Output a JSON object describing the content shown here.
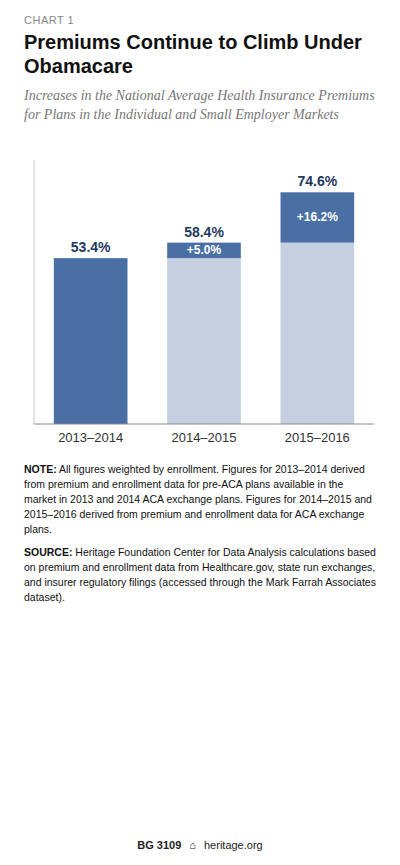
{
  "chart_data": {
    "type": "bar",
    "stacked": true,
    "label": "CHART 1",
    "title": "Premiums Continue to Climb Under Obamacare",
    "subtitle": "Increases in the National Average Health Insurance Premiums for Plans in the Individual and Small Employer Markets",
    "categories": [
      "2013–2014",
      "2014–2015",
      "2015–2016"
    ],
    "series": [
      {
        "values": [
          53.4,
          53.4,
          58.4
        ],
        "colors": [
          "#4a6fa5",
          "#c5cfe0",
          "#c5cfe0"
        ]
      },
      {
        "values": [
          0,
          5.0,
          16.2
        ],
        "color": "#4a6fa5",
        "data_labels": true,
        "value_labels": [
          null,
          "+5.0%",
          "+16.2%"
        ]
      }
    ],
    "totals": [
      53.4,
      58.4,
      74.6
    ],
    "total_labels": [
      "53.4%",
      "58.4%",
      "74.6%"
    ],
    "ylim": [
      0,
      85
    ],
    "yticks": [],
    "tick_labels": "x",
    "grid": false,
    "note_label": "NOTE:",
    "note": "All figures weighted by enrollment. Figures for 2013–2014 derived from premium and enrollment data for pre-ACA plans available in the market in 2013 and 2014 ACA exchange plans. Figures for 2014–2015 and 2015–2016 derived from premium and enrollment data for ACA exchange plans.",
    "source_label": "SOURCE:",
    "source": "Heritage Foundation Center for Data Analysis calculations based on premium and enrollment data from Healthcare.gov, state run exchanges, and insurer regulatory filings (accessed through the Mark Farrah Associates dataset).",
    "footer": [
      "BG 3109",
      "⌂",
      "heritage.org"
    ]
  }
}
